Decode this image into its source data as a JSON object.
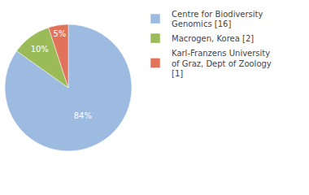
{
  "chart_data": {
    "type": "pie",
    "categories": [
      "Centre for Biodiversity Genomics [16]",
      "Macrogen, Korea [2]",
      "Karl-Franzens University of Graz, Dept of Zoology [1]"
    ],
    "values": [
      84,
      10,
      5
    ],
    "value_labels": [
      "84%",
      "10%",
      "5%"
    ],
    "colors": [
      "#9dbbe1",
      "#9bbb59",
      "#e0735a"
    ],
    "data_labels": true,
    "legend": "top-right"
  }
}
